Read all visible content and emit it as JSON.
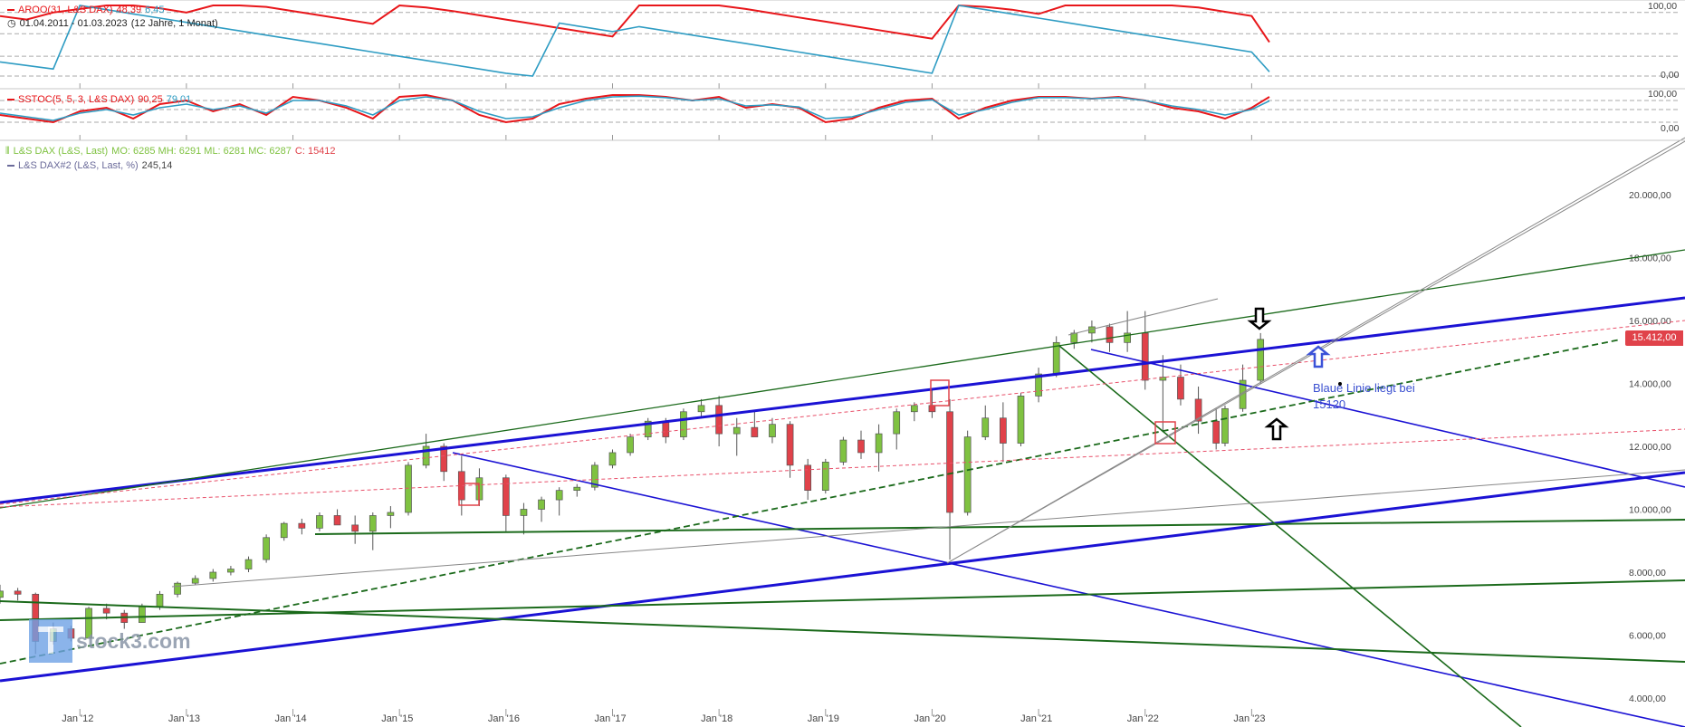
{
  "legend": {
    "aroon": {
      "label": "AROO(31, L&S DAX)",
      "up": "48,39",
      "down": "6,45"
    },
    "period": {
      "range": "01.04.2011 - 01.03.2023",
      "span": "(12 Jahre, 1 Monat)"
    },
    "sstoc": {
      "label": "SSTOC(5, 5, 3, L&S DAX)",
      "k": "90,25",
      "d": "79,01"
    },
    "main": {
      "label": "L&S DAX (L&S, Last)",
      "ohlc": "MO: 6285 MH: 6291 ML: 6281 MC: 6287",
      "close": "C: 15412"
    },
    "second": {
      "label": "L&S DAX#2 (L&S, Last, %)",
      "value": "245,14"
    }
  },
  "annotation": {
    "line1": "Blaue Linie liegt bei",
    "line2": "15120"
  },
  "watermark": "stock3.com",
  "price_tag": "15.412,00",
  "colors": {
    "up": "#7fc241",
    "down": "#e0424a",
    "aroon_up": "#e8161a",
    "aroon_down": "#2e9cc3",
    "trend_blue": "#1b12d4",
    "trend_green": "#1b6a1b"
  },
  "chart_data": [
    {
      "type": "line",
      "title": "AROO(31, L&S DAX)",
      "ylim": [
        0,
        100
      ],
      "y_ticks": [
        "100,00",
        "0,00"
      ],
      "x": [
        "2011-04",
        "2011-07",
        "2011-10",
        "2012-01",
        "2012-04",
        "2012-07",
        "2012-10",
        "2013-01",
        "2013-04",
        "2013-07",
        "2013-10",
        "2014-01",
        "2014-04",
        "2014-07",
        "2014-10",
        "2015-01",
        "2015-04",
        "2015-07",
        "2015-10",
        "2016-01",
        "2016-04",
        "2016-07",
        "2016-10",
        "2017-01",
        "2017-04",
        "2017-07",
        "2017-10",
        "2018-01",
        "2018-04",
        "2018-07",
        "2018-10",
        "2019-01",
        "2019-04",
        "2019-07",
        "2019-10",
        "2020-01",
        "2020-04",
        "2020-07",
        "2020-10",
        "2021-01",
        "2021-04",
        "2021-07",
        "2021-10",
        "2022-01",
        "2022-04",
        "2022-07",
        "2022-10",
        "2023-01",
        "2023-03"
      ],
      "series": [
        {
          "name": "AROO up",
          "values": [
            85,
            80,
            90,
            95,
            100,
            100,
            96,
            90,
            100,
            100,
            98,
            92,
            86,
            80,
            74,
            100,
            97,
            92,
            86,
            80,
            74,
            68,
            62,
            56,
            100,
            100,
            100,
            100,
            95,
            89,
            83,
            77,
            71,
            65,
            59,
            53,
            100,
            98,
            94,
            88,
            100,
            100,
            100,
            100,
            100,
            97,
            91,
            85,
            48
          ]
        },
        {
          "name": "AROO down",
          "values": [
            20,
            15,
            10,
            100,
            94,
            88,
            82,
            76,
            70,
            64,
            58,
            52,
            46,
            40,
            34,
            28,
            22,
            16,
            10,
            4,
            0,
            75,
            69,
            63,
            70,
            64,
            58,
            52,
            46,
            40,
            34,
            28,
            22,
            16,
            10,
            4,
            100,
            94,
            88,
            82,
            76,
            70,
            64,
            58,
            52,
            46,
            40,
            34,
            6
          ]
        }
      ]
    },
    {
      "type": "line",
      "title": "SSTOC(5, 5, 3, L&S DAX)",
      "ylim": [
        0,
        100
      ],
      "y_ticks": [
        "100,00",
        "0,00"
      ],
      "x": [
        "2011-04",
        "2011-07",
        "2011-10",
        "2012-01",
        "2012-04",
        "2012-07",
        "2012-10",
        "2013-01",
        "2013-04",
        "2013-07",
        "2013-10",
        "2014-01",
        "2014-04",
        "2014-07",
        "2014-10",
        "2015-01",
        "2015-04",
        "2015-07",
        "2015-10",
        "2016-01",
        "2016-04",
        "2016-07",
        "2016-10",
        "2017-01",
        "2017-04",
        "2017-07",
        "2017-10",
        "2018-01",
        "2018-04",
        "2018-07",
        "2018-10",
        "2019-01",
        "2019-04",
        "2019-07",
        "2019-10",
        "2020-01",
        "2020-04",
        "2020-07",
        "2020-10",
        "2021-01",
        "2021-04",
        "2021-07",
        "2021-10",
        "2022-01",
        "2022-04",
        "2022-07",
        "2022-10",
        "2023-01",
        "2023-03"
      ],
      "series": [
        {
          "name": "K",
          "values": [
            40,
            30,
            20,
            50,
            60,
            30,
            70,
            80,
            50,
            70,
            40,
            90,
            80,
            60,
            30,
            90,
            95,
            80,
            40,
            20,
            30,
            70,
            85,
            95,
            95,
            90,
            80,
            90,
            60,
            70,
            60,
            20,
            30,
            60,
            80,
            85,
            30,
            60,
            80,
            90,
            90,
            85,
            90,
            80,
            60,
            50,
            30,
            60,
            90
          ]
        },
        {
          "name": "D",
          "values": [
            45,
            35,
            25,
            45,
            55,
            40,
            60,
            70,
            55,
            65,
            45,
            80,
            80,
            65,
            40,
            80,
            90,
            80,
            50,
            30,
            35,
            60,
            80,
            90,
            92,
            88,
            80,
            85,
            65,
            68,
            62,
            30,
            35,
            55,
            75,
            82,
            40,
            55,
            75,
            88,
            88,
            85,
            88,
            80,
            65,
            55,
            40,
            55,
            79
          ]
        }
      ]
    },
    {
      "type": "candlestick",
      "title": "L&S DAX (L&S, Last)",
      "ylabel": "",
      "ylim": [
        3300,
        21500
      ],
      "y_ticks": [
        "4.000,00",
        "6.000,00",
        "8.000,00",
        "10.000,00",
        "12.000,00",
        "14.000,00",
        "16.000,00",
        "18.000,00",
        "20.000,00"
      ],
      "x_ticks": [
        "Jan '12",
        "Jan '13",
        "Jan '14",
        "Jan '15",
        "Jan '16",
        "Jan '17",
        "Jan '18",
        "Jan '19",
        "Jan '20",
        "Jan '21",
        "Jan '22",
        "Jan '23"
      ],
      "candles": [
        [
          "2011-04",
          7200,
          7600,
          7000,
          7400
        ],
        [
          "2011-06",
          7400,
          7500,
          7100,
          7300
        ],
        [
          "2011-08",
          7300,
          7350,
          5400,
          5800
        ],
        [
          "2011-10",
          5800,
          6400,
          5700,
          6200
        ],
        [
          "2011-12",
          6200,
          6300,
          5800,
          5900
        ],
        [
          "2012-02",
          5900,
          6900,
          5900,
          6850
        ],
        [
          "2012-04",
          6850,
          7000,
          6500,
          6700
        ],
        [
          "2012-06",
          6700,
          6800,
          6200,
          6400
        ],
        [
          "2012-08",
          6400,
          7000,
          6400,
          6900
        ],
        [
          "2012-10",
          6900,
          7400,
          6800,
          7300
        ],
        [
          "2012-12",
          7300,
          7700,
          7200,
          7650
        ],
        [
          "2013-02",
          7650,
          7900,
          7600,
          7800
        ],
        [
          "2013-04",
          7800,
          8100,
          7700,
          8000
        ],
        [
          "2013-06",
          8000,
          8200,
          7900,
          8100
        ],
        [
          "2013-08",
          8100,
          8500,
          8000,
          8400
        ],
        [
          "2013-10",
          8400,
          9200,
          8300,
          9100
        ],
        [
          "2013-12",
          9100,
          9600,
          9000,
          9550
        ],
        [
          "2014-02",
          9550,
          9700,
          9200,
          9400
        ],
        [
          "2014-04",
          9400,
          9900,
          9300,
          9800
        ],
        [
          "2014-06",
          9800,
          10000,
          9600,
          9500
        ],
        [
          "2014-08",
          9500,
          9800,
          8900,
          9300
        ],
        [
          "2014-10",
          9300,
          9900,
          8700,
          9800
        ],
        [
          "2014-12",
          9800,
          10100,
          9400,
          9900
        ],
        [
          "2015-02",
          9900,
          11500,
          9800,
          11400
        ],
        [
          "2015-04",
          11400,
          12400,
          11300,
          12000
        ],
        [
          "2015-06",
          12000,
          12100,
          10900,
          11200
        ],
        [
          "2015-08",
          11200,
          11700,
          9800,
          10300
        ],
        [
          "2015-10",
          10300,
          11300,
          10100,
          11000
        ],
        [
          "2016-01",
          11000,
          11100,
          9300,
          9800
        ],
        [
          "2016-03",
          9800,
          10200,
          9200,
          10000
        ],
        [
          "2016-05",
          10000,
          10400,
          9600,
          10300
        ],
        [
          "2016-07",
          10300,
          10700,
          9800,
          10600
        ],
        [
          "2016-09",
          10600,
          10800,
          10400,
          10700
        ],
        [
          "2016-11",
          10700,
          11500,
          10600,
          11400
        ],
        [
          "2017-01",
          11400,
          11900,
          11300,
          11800
        ],
        [
          "2017-03",
          11800,
          12400,
          11700,
          12300
        ],
        [
          "2017-05",
          12300,
          12900,
          12200,
          12800
        ],
        [
          "2017-07",
          12800,
          12900,
          12100,
          12300
        ],
        [
          "2017-09",
          12300,
          13200,
          12200,
          13100
        ],
        [
          "2017-11",
          13100,
          13500,
          12900,
          13300
        ],
        [
          "2018-01",
          13300,
          13600,
          12000,
          12400
        ],
        [
          "2018-03",
          12400,
          12900,
          11700,
          12600
        ],
        [
          "2018-05",
          12600,
          13100,
          12400,
          12300
        ],
        [
          "2018-07",
          12300,
          12900,
          12100,
          12700
        ],
        [
          "2018-09",
          12700,
          12800,
          11000,
          11400
        ],
        [
          "2018-11",
          11400,
          11600,
          10300,
          10600
        ],
        [
          "2019-01",
          10600,
          11600,
          10500,
          11500
        ],
        [
          "2019-03",
          11500,
          12300,
          11400,
          12200
        ],
        [
          "2019-05",
          12200,
          12500,
          11600,
          11800
        ],
        [
          "2019-07",
          11800,
          12700,
          11200,
          12400
        ],
        [
          "2019-09",
          12400,
          13200,
          11900,
          13100
        ],
        [
          "2019-11",
          13100,
          13400,
          12800,
          13300
        ],
        [
          "2020-01",
          13300,
          13800,
          12900,
          13100
        ],
        [
          "2020-03",
          13100,
          13500,
          8400,
          9900
        ],
        [
          "2020-05",
          9900,
          12500,
          9800,
          12300
        ],
        [
          "2020-07",
          12300,
          13300,
          12200,
          12900
        ],
        [
          "2020-09",
          12900,
          13400,
          11500,
          12100
        ],
        [
          "2020-11",
          12100,
          13700,
          12000,
          13600
        ],
        [
          "2021-01",
          13600,
          14500,
          13400,
          14300
        ],
        [
          "2021-03",
          14300,
          15500,
          14200,
          15300
        ],
        [
          "2021-05",
          15300,
          15700,
          15100,
          15600
        ],
        [
          "2021-07",
          15600,
          16000,
          15300,
          15800
        ],
        [
          "2021-09",
          15800,
          15900,
          15000,
          15300
        ],
        [
          "2021-11",
          15300,
          16300,
          15000,
          15600
        ],
        [
          "2022-01",
          15600,
          16300,
          13800,
          14100
        ],
        [
          "2022-03",
          14100,
          14900,
          12500,
          14200
        ],
        [
          "2022-05",
          14200,
          14600,
          13300,
          13500
        ],
        [
          "2022-07",
          13500,
          13900,
          12400,
          12800
        ],
        [
          "2022-09",
          12800,
          13200,
          11900,
          12100
        ],
        [
          "2022-10",
          12100,
          13300,
          12000,
          13200
        ],
        [
          "2022-12",
          13200,
          14600,
          13100,
          14100
        ],
        [
          "2023-02",
          14100,
          15600,
          14000,
          15400
        ]
      ]
    }
  ]
}
